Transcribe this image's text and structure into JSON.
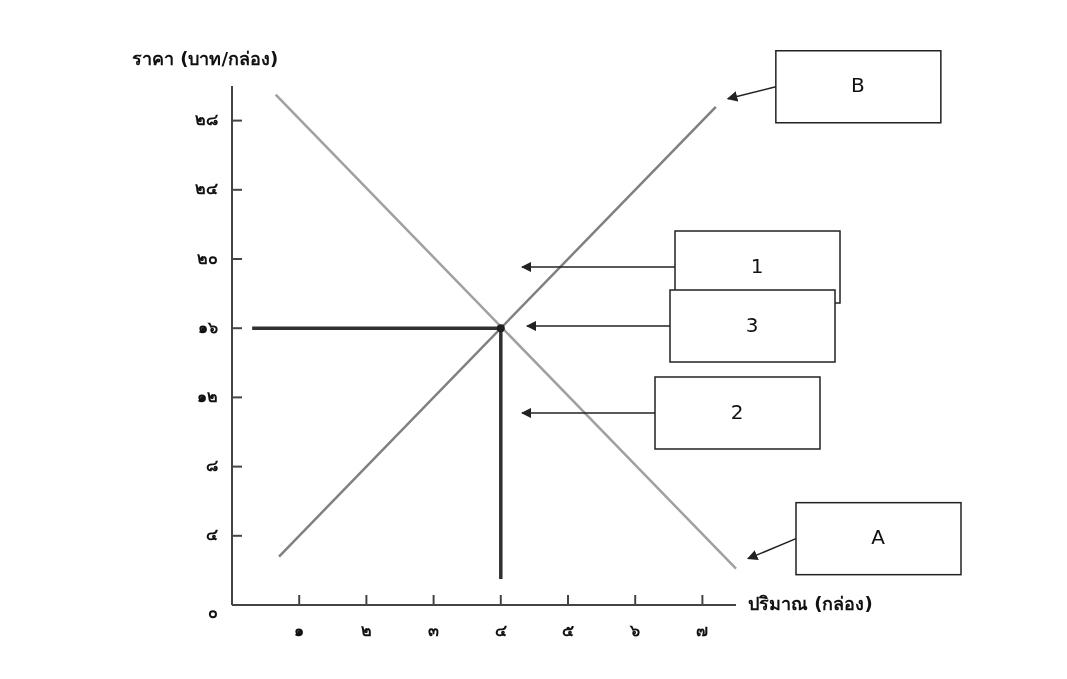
{
  "chart_data": {
    "type": "line",
    "xlabel": "ปริมาณ (กล่อง)",
    "ylabel": "ราคา (บาท/กล่อง)",
    "xlim": [
      0,
      7.5
    ],
    "ylim": [
      0,
      30
    ],
    "xticks": [
      {
        "value": 1,
        "label": "๑"
      },
      {
        "value": 2,
        "label": "๒"
      },
      {
        "value": 3,
        "label": "๓"
      },
      {
        "value": 4,
        "label": "๔"
      },
      {
        "value": 5,
        "label": "๕"
      },
      {
        "value": 6,
        "label": "๖"
      },
      {
        "value": 7,
        "label": "๗"
      }
    ],
    "yticks": [
      {
        "value": 0,
        "label": "๐"
      },
      {
        "value": 4,
        "label": "๔"
      },
      {
        "value": 8,
        "label": "๘"
      },
      {
        "value": 12,
        "label": "๑๒"
      },
      {
        "value": 16,
        "label": "๑๖"
      },
      {
        "value": 20,
        "label": "๒๐"
      },
      {
        "value": 24,
        "label": "๒๔"
      },
      {
        "value": 28,
        "label": "๒๘"
      }
    ],
    "grid": false,
    "series": [
      {
        "name": "A",
        "color": "#a0a0a0",
        "x": [
          0.65,
          7.5
        ],
        "values": [
          29.5,
          2.1
        ]
      },
      {
        "name": "B",
        "color": "#808080",
        "x": [
          0.7,
          7.2
        ],
        "values": [
          2.8,
          28.8
        ]
      },
      {
        "color": "#303030",
        "x": [
          0.3,
          4
        ],
        "values": [
          16,
          16
        ]
      },
      {
        "color": "#303030",
        "x": [
          4,
          4
        ],
        "values": [
          16,
          1.5
        ]
      },
      {
        "type": "scatter",
        "marker": "circle",
        "color": "#202020",
        "x": [
          4
        ],
        "values": [
          16
        ]
      }
    ],
    "annotations": [
      "1",
      "3",
      "2"
    ]
  }
}
